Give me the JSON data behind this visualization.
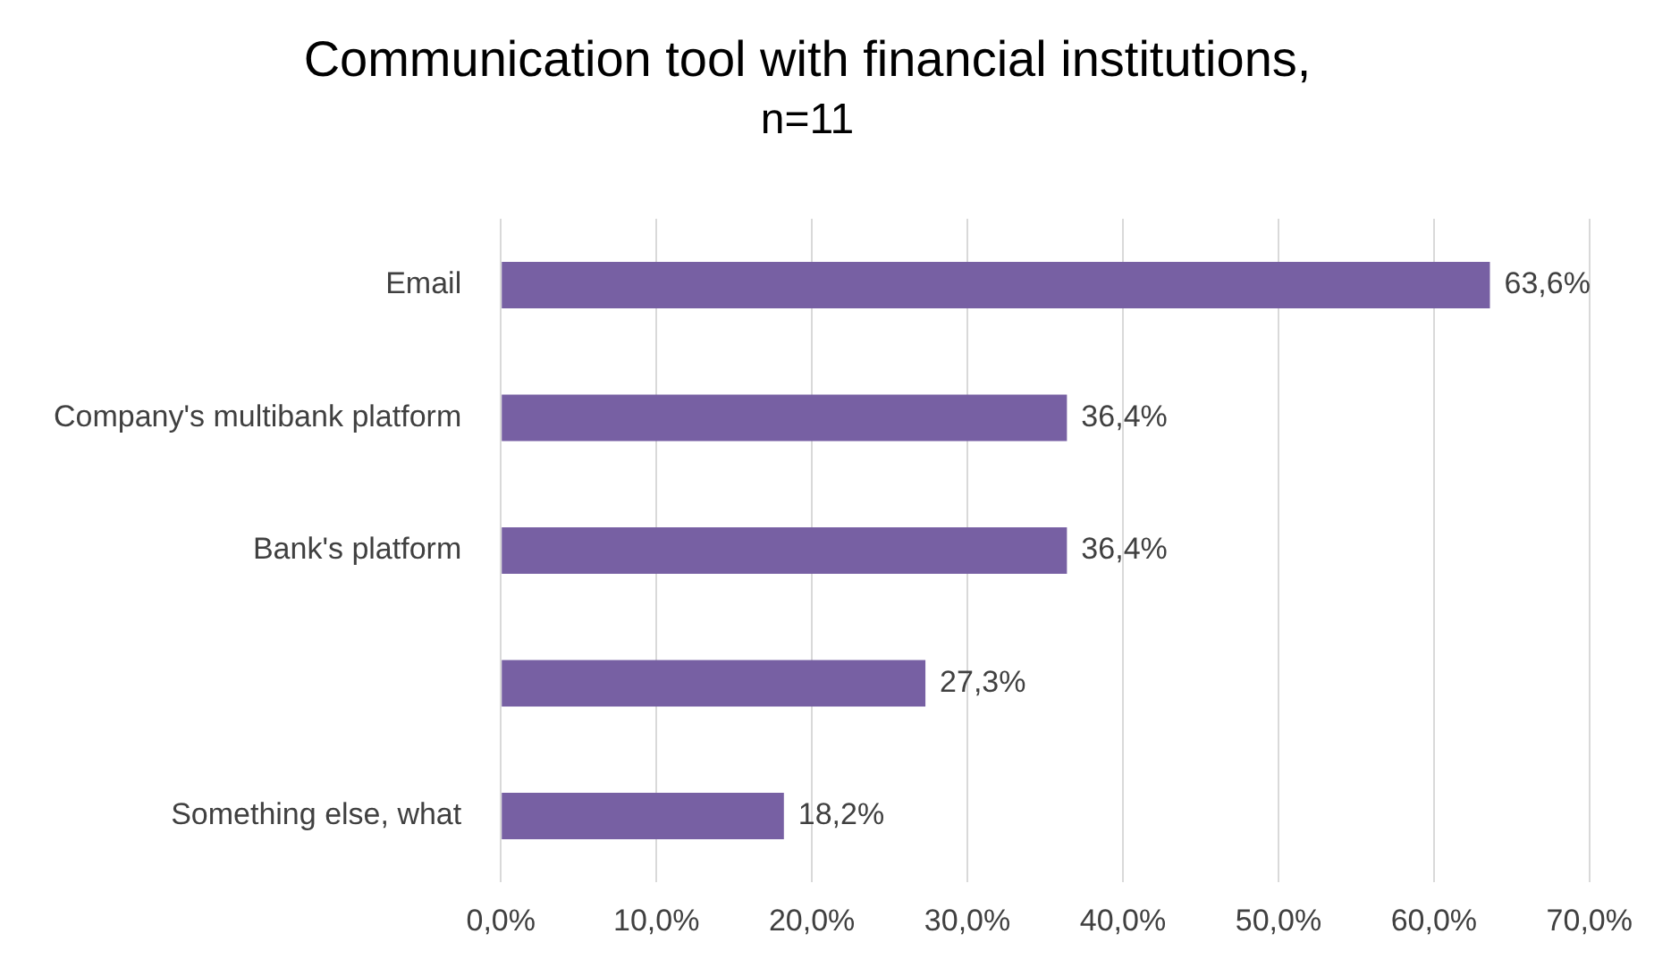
{
  "chart_data": {
    "type": "bar",
    "orientation": "horizontal",
    "title": "Communication tool with financial institutions,",
    "subtitle": "n=11",
    "categories": [
      "Email",
      "Company's multibank platform",
      "Bank's platform",
      null,
      "Something else, what"
    ],
    "values": [
      63.6,
      36.4,
      36.4,
      27.3,
      18.2
    ],
    "value_labels": [
      "63,6%",
      "36,4%",
      "36,4%",
      "27,3%",
      "18,2%"
    ],
    "color": "#7760a3",
    "xlim": [
      0,
      70
    ],
    "xticks": [
      {
        "value": 0,
        "label": "0,0%"
      },
      {
        "value": 10,
        "label": "10,0%"
      },
      {
        "value": 20,
        "label": "20,0%"
      },
      {
        "value": 30,
        "label": "30,0%"
      },
      {
        "value": 40,
        "label": "40,0%"
      },
      {
        "value": 50,
        "label": "50,0%"
      },
      {
        "value": 60,
        "label": "60,0%"
      },
      {
        "value": 70,
        "label": "70,0%"
      }
    ],
    "grid": "x",
    "legend": false
  }
}
